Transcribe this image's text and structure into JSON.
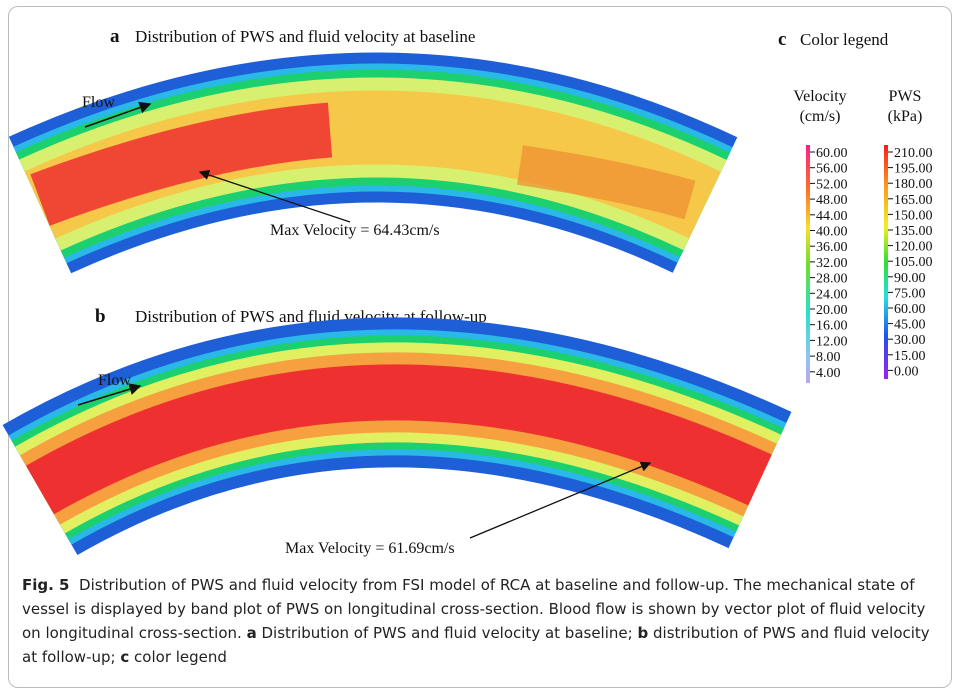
{
  "figure": {
    "panel_a": {
      "letter": "a",
      "title": "Distribution of PWS and fluid velocity at baseline",
      "flow": "Flow",
      "annotation": "Max Velocity = 64.43cm/s"
    },
    "panel_b": {
      "letter": "b",
      "title": "Distribution of PWS and fluid velocity at follow-up",
      "flow": "Flow",
      "annotation": "Max Velocity = 61.69cm/s"
    },
    "legend": {
      "letter": "c",
      "title": "Color legend",
      "velocity": {
        "name": "Velocity",
        "unit": "(cm/s)",
        "ticks": [
          "60.00",
          "56.00",
          "52.00",
          "48.00",
          "44.00",
          "40.00",
          "36.00",
          "32.00",
          "28.00",
          "24.00",
          "20.00",
          "16.00",
          "12.00",
          "8.00",
          "4.00"
        ]
      },
      "pws": {
        "name": "PWS",
        "unit": "(kPa)",
        "ticks": [
          "210.00",
          "195.00",
          "180.00",
          "165.00",
          "150.00",
          "135.00",
          "120.00",
          "105.00",
          "90.00",
          "75.00",
          "60.00",
          "45.00",
          "30.00",
          "15.00",
          "0.00"
        ]
      }
    }
  },
  "caption": {
    "label": "Fig. 5",
    "text1": "Distribution of PWS and fluid velocity from FSI model of RCA at baseline and follow-up. The mechanical state of vessel is displayed by band plot of PWS on longitudinal cross-section. Blood flow is shown by vector plot of fluid velocity on longitudinal cross-section.",
    "a": "a",
    "text2": "Distribution of PWS and fluid velocity at baseline;",
    "b": "b",
    "text3": "distribution of PWS and fluid velocity at follow-up;",
    "c": "c",
    "text4": "color legend"
  }
}
